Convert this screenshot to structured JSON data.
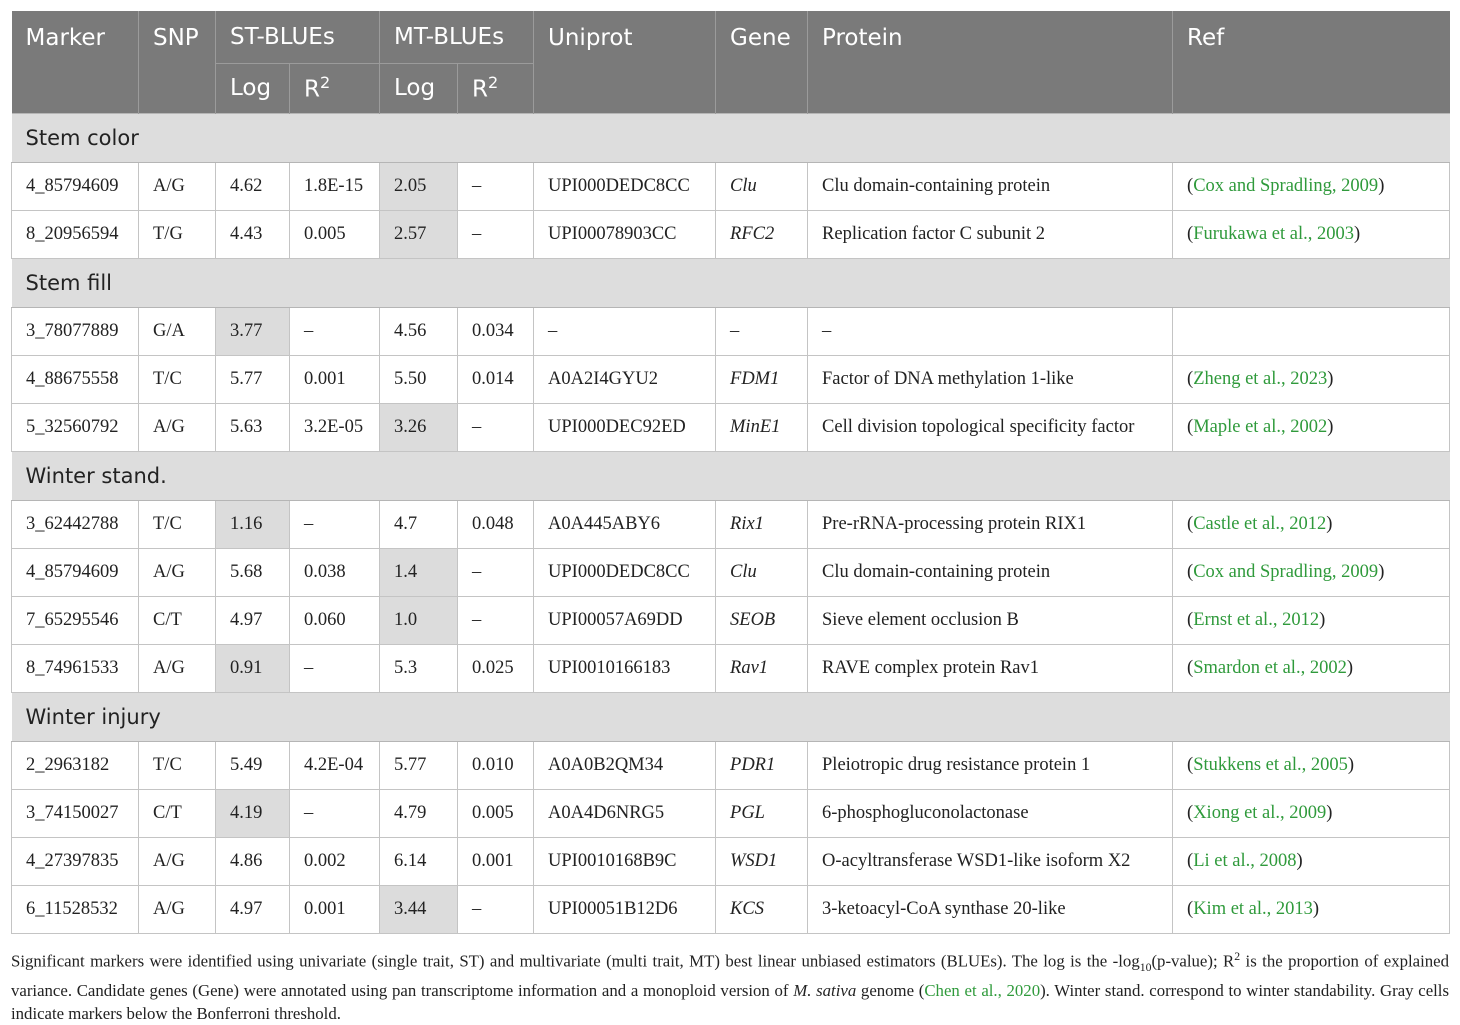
{
  "headers": {
    "marker": "Marker",
    "snp": "SNP",
    "st_blues": "ST-BLUEs",
    "mt_blues": "MT-BLUEs",
    "uniprot": "Uniprot",
    "gene": "Gene",
    "protein": "Protein",
    "ref": "Ref",
    "log": "Log",
    "r2_base": "R",
    "r2_exp": "2"
  },
  "sections": [
    {
      "title": "Stem color",
      "rows": [
        {
          "marker": "4_85794609",
          "snp": "A/G",
          "st_log": "4.62",
          "st_r2": "1.8E-15",
          "mt_log": "2.05",
          "mt_r2": "–",
          "uniprot": "UPI000DEDC8CC",
          "gene": "Clu",
          "protein": "Clu domain-containing protein",
          "ref": "Cox and Spradling, 2009",
          "gray": [
            "mt_log"
          ]
        },
        {
          "marker": "8_20956594",
          "snp": "T/G",
          "st_log": "4.43",
          "st_r2": "0.005",
          "mt_log": "2.57",
          "mt_r2": "–",
          "uniprot": "UPI00078903CC",
          "gene": "RFC2",
          "protein": "Replication factor C subunit 2",
          "ref": "Furukawa et al., 2003",
          "gray": [
            "mt_log"
          ]
        }
      ]
    },
    {
      "title": "Stem fill",
      "rows": [
        {
          "marker": "3_78077889",
          "snp": "G/A",
          "st_log": "3.77",
          "st_r2": "–",
          "mt_log": "4.56",
          "mt_r2": "0.034",
          "uniprot": "–",
          "gene": "–",
          "protein": "–",
          "ref": "",
          "gray": [
            "st_log"
          ]
        },
        {
          "marker": "4_88675558",
          "snp": "T/C",
          "st_log": "5.77",
          "st_r2": "0.001",
          "mt_log": "5.50",
          "mt_r2": "0.014",
          "uniprot": "A0A2I4GYU2",
          "gene": "FDM1",
          "protein": "Factor of DNA methylation 1-like",
          "ref": "Zheng et al., 2023",
          "gray": []
        },
        {
          "marker": "5_32560792",
          "snp": "A/G",
          "st_log": "5.63",
          "st_r2": "3.2E-05",
          "mt_log": "3.26",
          "mt_r2": "–",
          "uniprot": "UPI000DEC92ED",
          "gene": "MinE1",
          "protein": "Cell division topological specificity factor",
          "ref": "Maple et al., 2002",
          "gray": [
            "mt_log"
          ]
        }
      ]
    },
    {
      "title": "Winter stand.",
      "rows": [
        {
          "marker": "3_62442788",
          "snp": "T/C",
          "st_log": "1.16",
          "st_r2": "–",
          "mt_log": "4.7",
          "mt_r2": "0.048",
          "uniprot": "A0A445ABY6",
          "gene": "Rix1",
          "protein": "Pre-rRNA-processing protein RIX1",
          "ref": "Castle et al., 2012",
          "gray": [
            "st_log"
          ]
        },
        {
          "marker": "4_85794609",
          "snp": "A/G",
          "st_log": "5.68",
          "st_r2": "0.038",
          "mt_log": "1.4",
          "mt_r2": "–",
          "uniprot": "UPI000DEDC8CC",
          "gene": "Clu",
          "protein": "Clu domain-containing protein",
          "ref": "Cox and Spradling, 2009",
          "gray": [
            "mt_log"
          ]
        },
        {
          "marker": "7_65295546",
          "snp": "C/T",
          "st_log": "4.97",
          "st_r2": "0.060",
          "mt_log": "1.0",
          "mt_r2": "–",
          "uniprot": "UPI00057A69DD",
          "gene": "SEOB",
          "protein": "Sieve element occlusion B",
          "ref": "Ernst et al., 2012",
          "gray": [
            "mt_log"
          ]
        },
        {
          "marker": "8_74961533",
          "snp": "A/G",
          "st_log": "0.91",
          "st_r2": "–",
          "mt_log": "5.3",
          "mt_r2": "0.025",
          "uniprot": "UPI0010166183",
          "gene": "Rav1",
          "protein": "RAVE complex protein Rav1",
          "ref": "Smardon et al., 2002",
          "gray": [
            "st_log"
          ]
        }
      ]
    },
    {
      "title": "Winter injury",
      "rows": [
        {
          "marker": "2_2963182",
          "snp": "T/C",
          "st_log": "5.49",
          "st_r2": "4.2E-04",
          "mt_log": "5.77",
          "mt_r2": "0.010",
          "uniprot": "A0A0B2QM34",
          "gene": "PDR1",
          "protein": "Pleiotropic drug resistance protein 1",
          "ref": "Stukkens et al., 2005",
          "gray": []
        },
        {
          "marker": "3_74150027",
          "snp": "C/T",
          "st_log": "4.19",
          "st_r2": "–",
          "mt_log": "4.79",
          "mt_r2": "0.005",
          "uniprot": "A0A4D6NRG5",
          "gene": "PGL",
          "protein": "6-phosphogluconolactonase",
          "ref": "Xiong et al., 2009",
          "gray": [
            "st_log"
          ]
        },
        {
          "marker": "4_27397835",
          "snp": "A/G",
          "st_log": "4.86",
          "st_r2": "0.002",
          "mt_log": "6.14",
          "mt_r2": "0.001",
          "uniprot": "UPI0010168B9C",
          "gene": "WSD1",
          "protein": "O-acyltransferase WSD1-like isoform X2",
          "ref": "Li et al., 2008",
          "gray": []
        },
        {
          "marker": "6_11528532",
          "snp": "A/G",
          "st_log": "4.97",
          "st_r2": "0.001",
          "mt_log": "3.44",
          "mt_r2": "–",
          "uniprot": "UPI00051B12D6",
          "gene": "KCS",
          "protein": "3-ketoacyl-CoA synthase 20-like",
          "ref": "Kim et al., 2013",
          "gray": [
            "mt_log"
          ]
        }
      ]
    }
  ],
  "caption": {
    "part1": "Significant markers were identified using univariate (single trait, ST) and multivariate (multi trait, MT) best linear unbiased estimators (BLUEs). The log is the -log",
    "sub10": "10",
    "part2": "(p-value); R",
    "sup2": "2",
    "part3": " is the proportion of explained variance. Candidate genes (Gene) were annotated using pan transcriptome information and a monoploid version of ",
    "species": "M. sativa",
    "part4": " genome (",
    "cite": "Chen et al., 2020",
    "part5": "). Winter stand. correspond to winter standability. Gray cells indicate markers below the Bonferroni threshold."
  }
}
